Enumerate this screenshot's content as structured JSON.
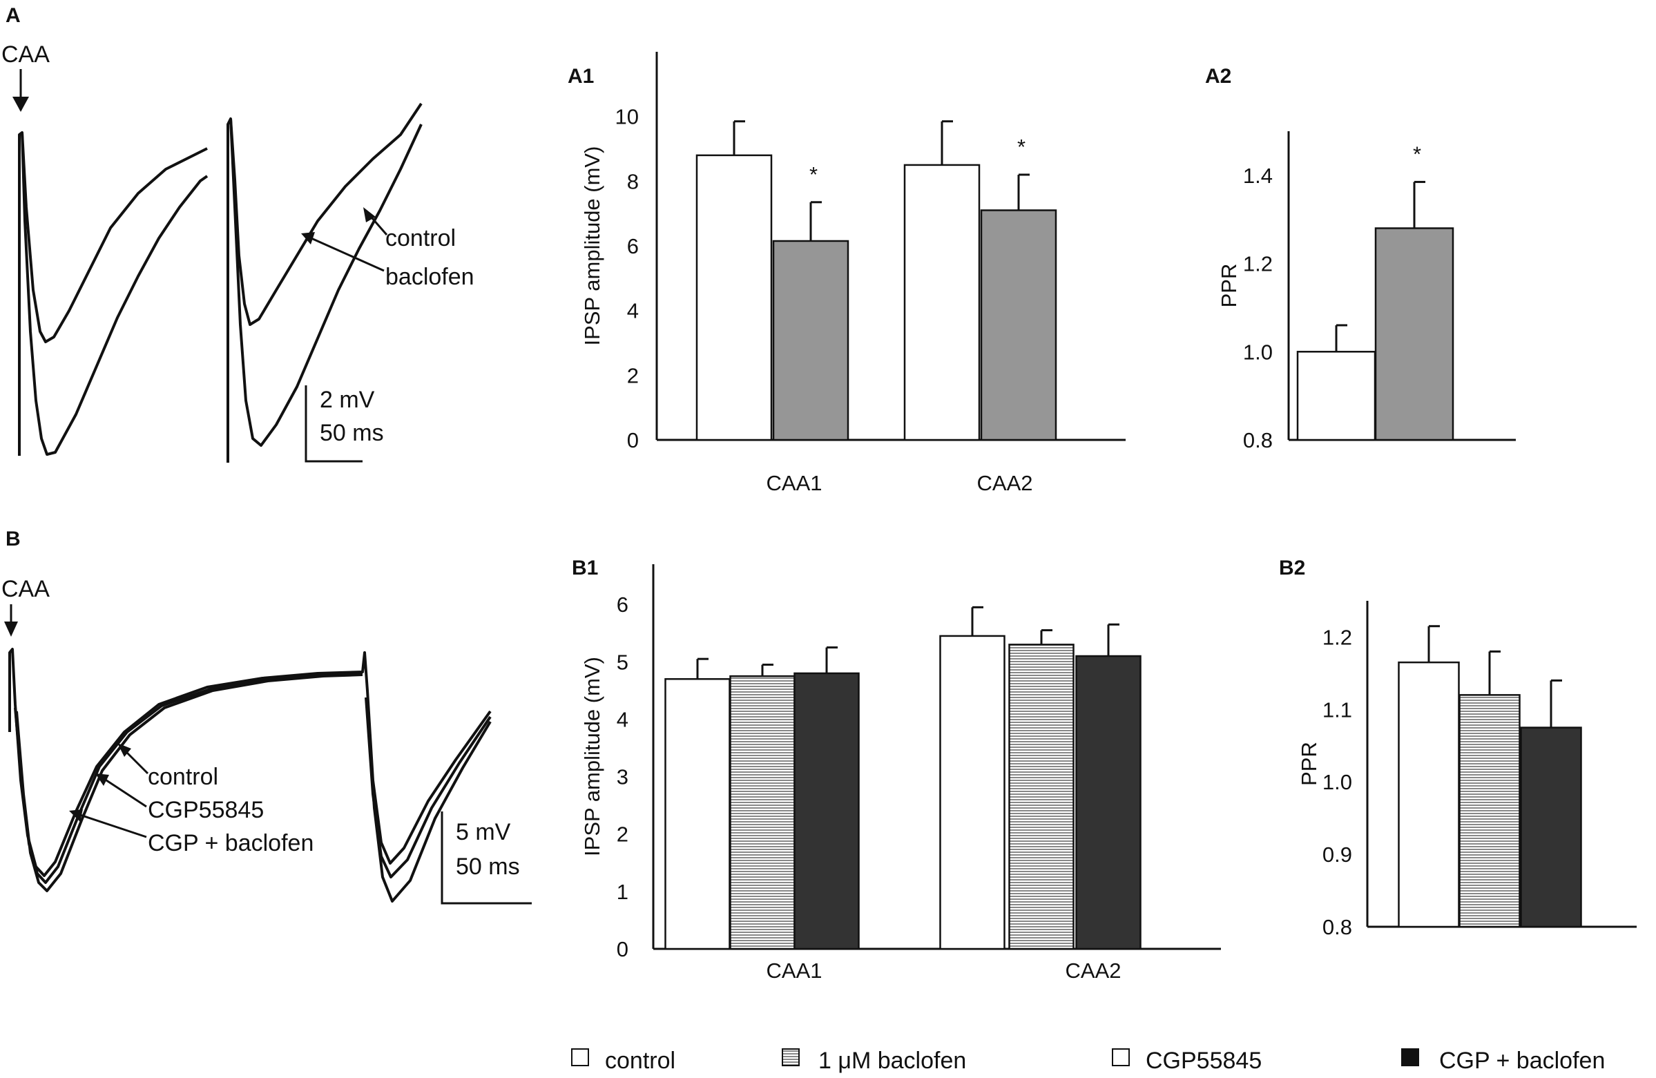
{
  "panels": {
    "A": "A",
    "A1": "A1",
    "A2": "A2",
    "B": "B",
    "B1": "B1",
    "B2": "B2"
  },
  "traces_A": {
    "stim_label": "CAA",
    "label_control": "control",
    "label_baclofen": "baclofen",
    "scale_v": "2 mV",
    "scale_t": "50 ms"
  },
  "traces_B": {
    "stim_label": "CAA",
    "label_control": "control",
    "label_cgp": "CGP55845",
    "label_cgp_baclofen": "CGP + baclofen",
    "scale_v": "5 mV",
    "scale_t": "50 ms"
  },
  "legend": [
    {
      "key": "control",
      "label": "control",
      "color": "#ffffff",
      "pattern": "none"
    },
    {
      "key": "baclofen",
      "label": "1 μM baclofen",
      "color": "#ffffff",
      "pattern": "stripes"
    },
    {
      "key": "cgp",
      "label": "CGP55845",
      "color": "#ffffff",
      "pattern": "none"
    },
    {
      "key": "cgp_baclofen",
      "label": "CGP + baclofen",
      "color": "#111111",
      "pattern": "none"
    }
  ],
  "chart_data": [
    {
      "id": "A1",
      "type": "bar",
      "title": "",
      "ylabel": "IPSP amplitude (mV)",
      "xlabel": "",
      "ylim": [
        0,
        12
      ],
      "yticks": [
        "0",
        "2",
        "4",
        "6",
        "8",
        "10"
      ],
      "categories": [
        "CAA1",
        "CAA2"
      ],
      "series": [
        {
          "name": "control",
          "fill": "#ffffff",
          "values": [
            8.8,
            8.5
          ],
          "errors": [
            1.05,
            1.35
          ]
        },
        {
          "name": "baclofen",
          "fill": "#969696",
          "values": [
            6.15,
            7.1
          ],
          "errors": [
            1.2,
            1.1
          ]
        }
      ],
      "annotations": [
        {
          "category": "CAA1",
          "series": "baclofen",
          "text": "*"
        },
        {
          "category": "CAA2",
          "series": "baclofen",
          "text": "*"
        }
      ]
    },
    {
      "id": "A2",
      "type": "bar",
      "title": "",
      "ylabel": "PPR",
      "xlabel": "",
      "ylim": [
        0.8,
        1.5
      ],
      "yticks": [
        "0.8",
        "1.0",
        "1.2",
        "1.4"
      ],
      "categories": [
        ""
      ],
      "series": [
        {
          "name": "control",
          "fill": "#ffffff",
          "values": [
            1.0
          ],
          "errors": [
            0.06
          ]
        },
        {
          "name": "baclofen",
          "fill": "#969696",
          "values": [
            1.28
          ],
          "errors": [
            0.105
          ]
        }
      ],
      "annotations": [
        {
          "category": "",
          "series": "baclofen",
          "text": "*"
        }
      ]
    },
    {
      "id": "B1",
      "type": "bar",
      "title": "",
      "ylabel": "IPSP amplitude (mV)",
      "xlabel": "",
      "ylim": [
        0,
        6.7
      ],
      "yticks": [
        "0",
        "1",
        "2",
        "3",
        "4",
        "5",
        "6"
      ],
      "categories": [
        "CAA1",
        "CAA2"
      ],
      "series": [
        {
          "name": "control",
          "fill": "#ffffff",
          "values": [
            4.7,
            5.45
          ],
          "errors": [
            0.35,
            0.5
          ]
        },
        {
          "name": "1 μM baclofen",
          "fill": "stripes",
          "values": [
            4.75,
            5.3
          ],
          "errors": [
            0.2,
            0.25
          ]
        },
        {
          "name": "CGP + baclofen",
          "fill": "#333333",
          "values": [
            4.8,
            5.1
          ],
          "errors": [
            0.45,
            0.55
          ]
        }
      ]
    },
    {
      "id": "B2",
      "type": "bar",
      "title": "",
      "ylabel": "PPR",
      "xlabel": "",
      "ylim": [
        0.8,
        1.25
      ],
      "yticks": [
        "0.8",
        "0.9",
        "1.0",
        "1.1",
        "1.2"
      ],
      "categories": [
        ""
      ],
      "series": [
        {
          "name": "control",
          "fill": "#ffffff",
          "values": [
            1.165
          ],
          "errors": [
            0.05
          ]
        },
        {
          "name": "1 μM baclofen",
          "fill": "stripes",
          "values": [
            1.12
          ],
          "errors": [
            0.06
          ]
        },
        {
          "name": "CGP + baclofen",
          "fill": "#333333",
          "values": [
            1.075
          ],
          "errors": [
            0.065
          ]
        }
      ]
    }
  ]
}
